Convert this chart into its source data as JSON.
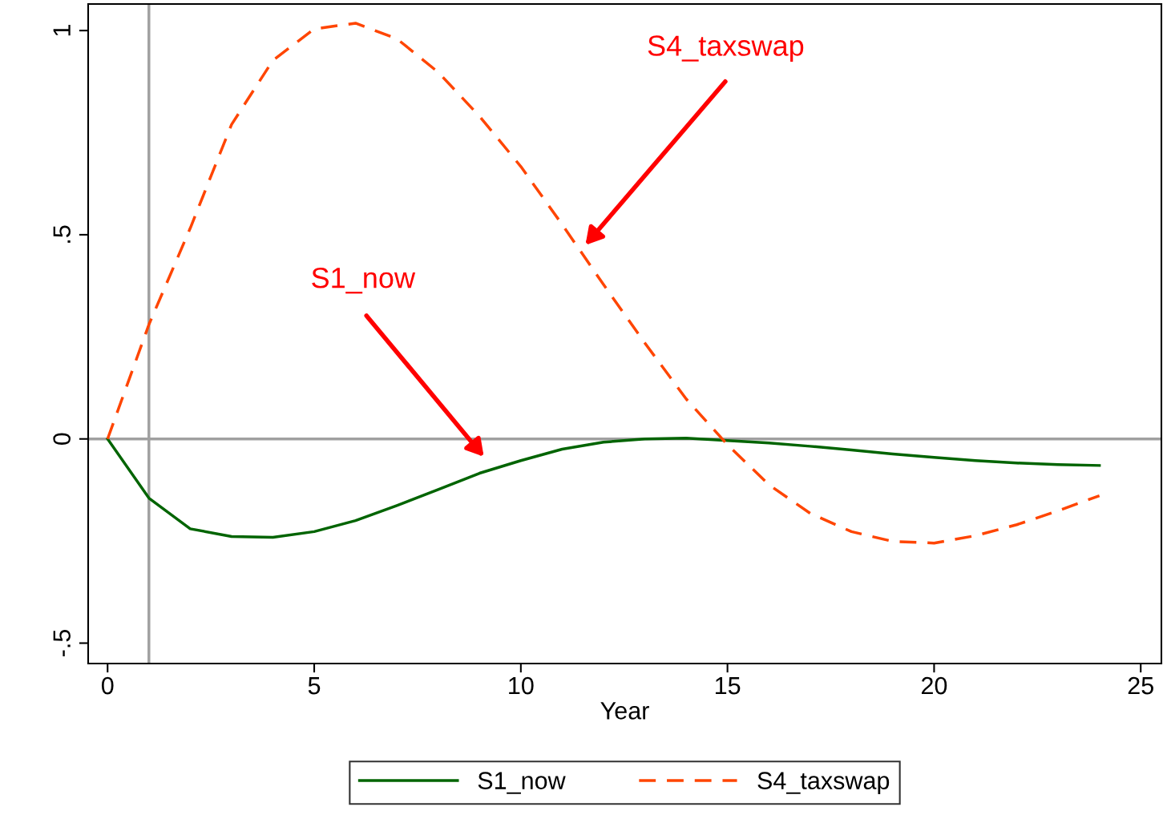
{
  "chart_data": {
    "type": "line",
    "xlabel": "Year",
    "x": [
      0,
      1,
      2,
      3,
      4,
      5,
      6,
      7,
      8,
      9,
      10,
      11,
      12,
      13,
      14,
      15,
      16,
      17,
      18,
      19,
      20,
      21,
      22,
      23,
      24
    ],
    "series": [
      {
        "name": "S1_now",
        "color": "#006400",
        "line_style": "solid",
        "values": [
          0,
          -0.145,
          -0.22,
          -0.239,
          -0.241,
          -0.227,
          -0.2,
          -0.163,
          -0.124,
          -0.084,
          -0.053,
          -0.025,
          -0.008,
          0,
          0.002,
          -0.004,
          -0.01,
          -0.018,
          -0.027,
          -0.037,
          -0.045,
          -0.053,
          -0.059,
          -0.063,
          -0.065
        ]
      },
      {
        "name": "S4_taxswap",
        "color": "#ff4500",
        "line_style": "dashed",
        "values": [
          0,
          0.28,
          0.516,
          0.77,
          0.927,
          1.004,
          1.018,
          0.98,
          0.898,
          0.79,
          0.667,
          0.525,
          0.378,
          0.235,
          0.098,
          -0.014,
          -0.112,
          -0.182,
          -0.227,
          -0.251,
          -0.255,
          -0.237,
          -0.21,
          -0.176,
          -0.139
        ]
      }
    ],
    "xlim": [
      -0.47,
      25.5
    ],
    "ylim": [
      -0.55,
      1.065
    ],
    "xticks": [
      0,
      5,
      10,
      15,
      20,
      25
    ],
    "yticks": [
      {
        "value": -0.5,
        "label": "-.5"
      },
      0,
      {
        "value": 0.5,
        "label": ".5"
      },
      1
    ],
    "ref_lines": [
      {
        "axis": "x",
        "value": 1,
        "color": "#a0a0a0"
      },
      {
        "axis": "y",
        "value": 0,
        "color": "#a0a0a0"
      }
    ],
    "annotations": [
      "S4_taxswap",
      "S1_now"
    ],
    "grid": false,
    "legend": "bottom",
    "marker": "none"
  }
}
